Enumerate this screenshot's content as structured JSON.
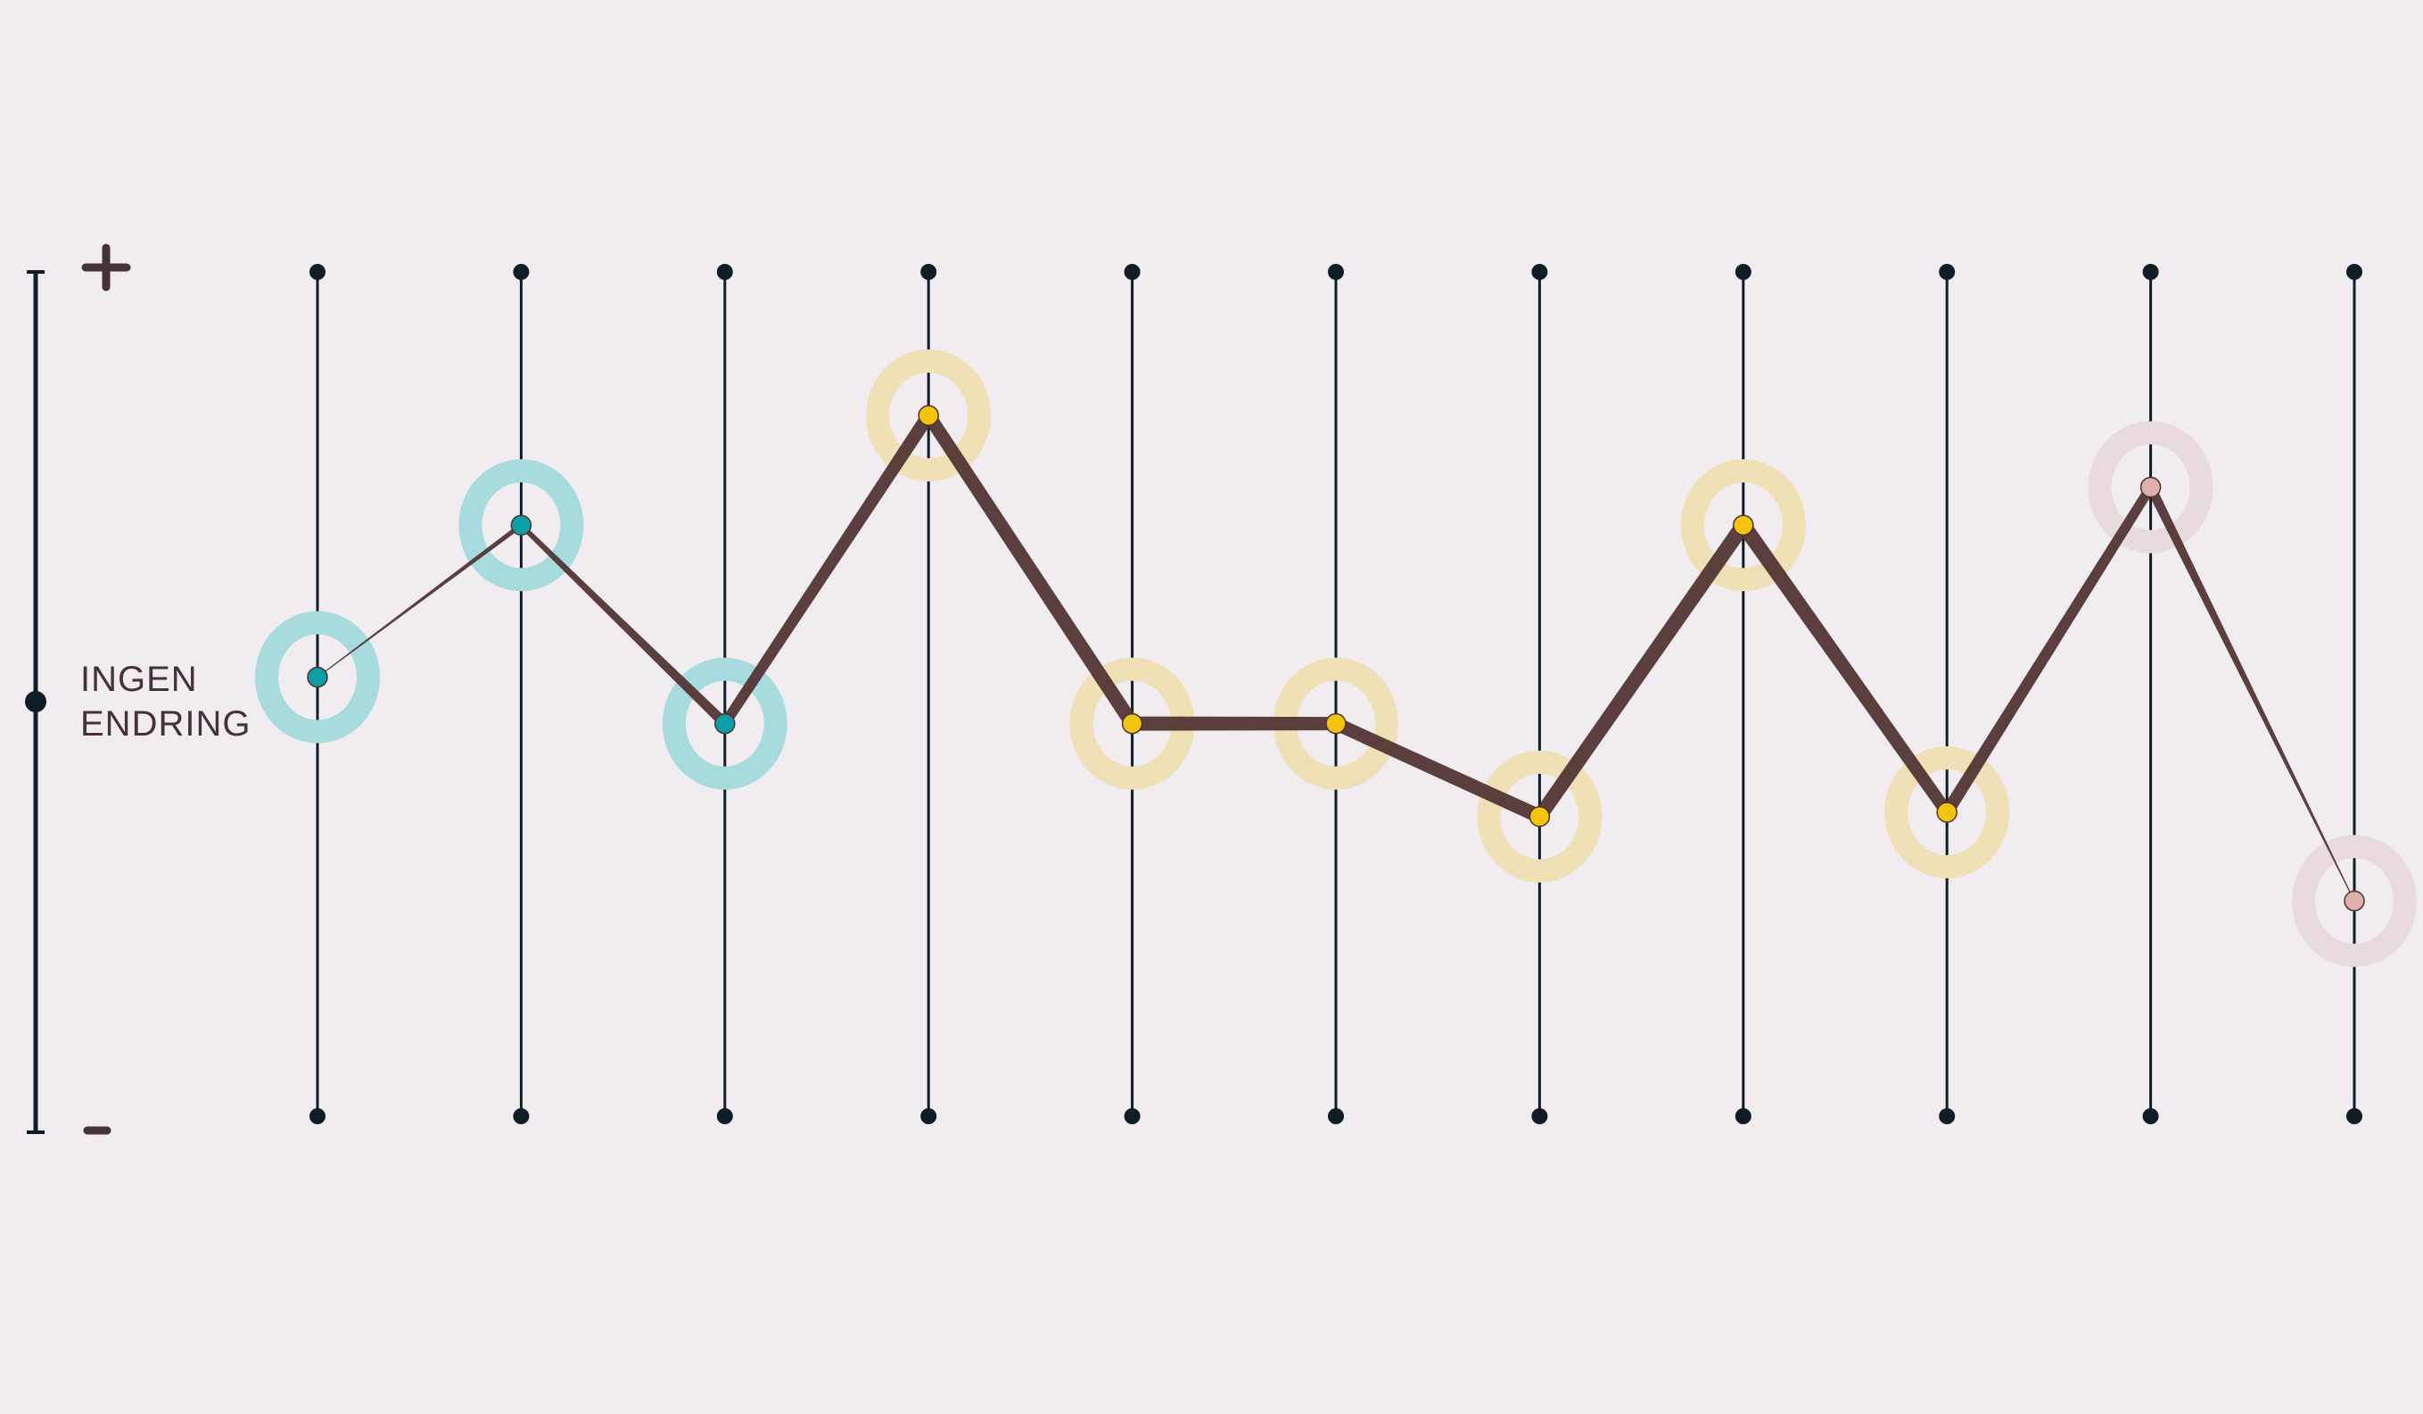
{
  "chart_data": {
    "type": "line",
    "title": "",
    "xlabel": "",
    "ylabel": "",
    "scale": {
      "plus_label": "+",
      "minus_label": "–",
      "baseline_label_line1": "INGEN",
      "baseline_label_line2": "ENDRING"
    },
    "ylim": [
      -1,
      1
    ],
    "x": [
      1,
      2,
      3,
      4,
      5,
      6,
      7,
      8,
      9,
      10,
      11
    ],
    "series": [
      {
        "values": [
          0.04,
          0.4,
          -0.07,
          0.66,
          -0.07,
          -0.07,
          -0.29,
          0.4,
          -0.28,
          0.49,
          -0.49
        ],
        "point_groups": [
          "teal",
          "teal",
          "teal",
          "yellow",
          "yellow",
          "yellow",
          "yellow",
          "yellow",
          "yellow",
          "pink",
          "pink"
        ],
        "segment_weights": [
          2,
          9,
          14,
          16,
          16,
          14,
          18,
          16,
          12,
          10,
          2
        ]
      }
    ],
    "grid": true,
    "legend": "none"
  },
  "colors": {
    "background": "#f0ecf0",
    "axis": "#0f1d27",
    "line": "#4f3230",
    "sign_marks": "#45313a",
    "teal": "#0b9ea6",
    "teal_ring": "#a8dbde",
    "yellow": "#f2c40f",
    "yellow_ring": "#efe0b6",
    "pink": "#ddb0ad",
    "pink_ring": "#e8dbdd"
  }
}
